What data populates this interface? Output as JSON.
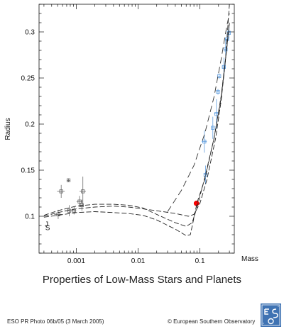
{
  "caption": "Properties of Low-Mass Stars and Planets",
  "footer": {
    "photo_id": "ESO PR Photo 06b/05 (3 March 2005)",
    "credit": "© European Southern Observatory"
  },
  "logo": {
    "icon": "eso-logo-icon",
    "color": "#3f73b3"
  },
  "chart_data": {
    "type": "scatter",
    "xlabel": "Mass",
    "ylabel": "Radius",
    "xscale": "log",
    "xlim": [
      0.00025,
      0.36
    ],
    "ylim": [
      0.06,
      0.33
    ],
    "x_ticks": [
      0.001,
      0.01,
      0.1
    ],
    "x_tick_labels": [
      "0.001",
      "0.01",
      "0.1"
    ],
    "y_ticks": [
      0.1,
      0.15,
      0.2,
      0.25,
      0.3
    ],
    "y_tick_labels": [
      "0.1",
      "0.15",
      "0.2",
      "0.25",
      "0.3"
    ],
    "grid": false,
    "annotations": [
      {
        "text": "J",
        "x": 0.00031,
        "y": 0.089
      },
      {
        "text": "S",
        "x": 0.000315,
        "y": 0.085
      }
    ],
    "series": [
      {
        "kind": "points",
        "color": "#555555",
        "points": [
          {
            "x": 0.00051,
            "y": 0.102,
            "xerr": 7e-05,
            "yerr": 0.005
          },
          {
            "x": 0.00057,
            "y": 0.127,
            "xerr": 8e-05,
            "yerr": 0.007
          },
          {
            "x": 0.00075,
            "y": 0.139,
            "xerr": 5e-05,
            "yerr": 0.002
          },
          {
            "x": 0.00077,
            "y": 0.106,
            "xerr": 0.00012,
            "yerr": 0.006
          },
          {
            "x": 0.00092,
            "y": 0.106,
            "xerr": 8e-05,
            "yerr": 0.004
          },
          {
            "x": 0.00113,
            "y": 0.116,
            "xerr": 0.00012,
            "yerr": 0.006
          },
          {
            "x": 0.00123,
            "y": 0.112,
            "xerr": 0.0001,
            "yerr": 0.006
          },
          {
            "x": 0.00128,
            "y": 0.127,
            "xerr": 0.00015,
            "yerr": 0.016
          }
        ]
      },
      {
        "kind": "points",
        "color": "#4a90d9",
        "points": [
          {
            "x": 0.123,
            "y": 0.145,
            "xerr": 0.005,
            "yerr": 0.01
          },
          {
            "x": 0.118,
            "y": 0.181,
            "xerr": 0.011,
            "yerr": 0.012
          },
          {
            "x": 0.162,
            "y": 0.196,
            "xerr": 0.008,
            "yerr": 0.012
          },
          {
            "x": 0.185,
            "y": 0.211,
            "xerr": 0.015,
            "yerr": 0.016
          },
          {
            "x": 0.196,
            "y": 0.235,
            "xerr": 0.006,
            "yerr": 0.003
          },
          {
            "x": 0.205,
            "y": 0.252,
            "xerr": 0.007,
            "yerr": 0.003
          },
          {
            "x": 0.244,
            "y": 0.262,
            "xerr": 0.018,
            "yerr": 0.01
          },
          {
            "x": 0.261,
            "y": 0.281,
            "xerr": 0.013,
            "yerr": 0.009
          },
          {
            "x": 0.275,
            "y": 0.292,
            "xerr": 0.02,
            "yerr": 0.006
          },
          {
            "x": 0.295,
            "y": 0.299,
            "xerr": 0.01,
            "yerr": 0.006
          }
        ]
      },
      {
        "kind": "points",
        "color": "#ff0000",
        "points": [
          {
            "x": 0.088,
            "y": 0.114
          }
        ]
      },
      {
        "kind": "line",
        "style": "dashed",
        "color": "#222222",
        "points": [
          [
            0.0003,
            0.1
          ],
          [
            0.0005,
            0.104
          ],
          [
            0.001,
            0.108
          ],
          [
            0.002,
            0.11
          ],
          [
            0.004,
            0.111
          ],
          [
            0.007,
            0.11
          ],
          [
            0.012,
            0.108
          ],
          [
            0.02,
            0.106
          ],
          [
            0.04,
            0.103
          ],
          [
            0.065,
            0.1
          ],
          [
            0.08,
            0.102
          ],
          [
            0.1,
            0.114
          ],
          [
            0.13,
            0.14
          ],
          [
            0.18,
            0.185
          ],
          [
            0.22,
            0.225
          ],
          [
            0.26,
            0.27
          ],
          [
            0.3,
            0.33
          ]
        ]
      },
      {
        "kind": "line",
        "style": "dashed",
        "color": "#222222",
        "points": [
          [
            0.0003,
            0.101
          ],
          [
            0.0005,
            0.106
          ],
          [
            0.001,
            0.111
          ],
          [
            0.002,
            0.113
          ],
          [
            0.004,
            0.113
          ],
          [
            0.007,
            0.112
          ],
          [
            0.012,
            0.109
          ],
          [
            0.02,
            0.102
          ],
          [
            0.04,
            0.093
          ],
          [
            0.06,
            0.089
          ],
          [
            0.075,
            0.093
          ],
          [
            0.09,
            0.11
          ],
          [
            0.12,
            0.142
          ],
          [
            0.17,
            0.185
          ],
          [
            0.22,
            0.228
          ],
          [
            0.27,
            0.28
          ],
          [
            0.3,
            0.31
          ]
        ]
      },
      {
        "kind": "line",
        "style": "dashed",
        "color": "#222222",
        "points": [
          [
            0.0003,
            0.099
          ],
          [
            0.0005,
            0.101
          ],
          [
            0.001,
            0.104
          ],
          [
            0.002,
            0.105
          ],
          [
            0.004,
            0.104
          ],
          [
            0.007,
            0.103
          ],
          [
            0.012,
            0.101
          ],
          [
            0.02,
            0.096
          ],
          [
            0.04,
            0.086
          ],
          [
            0.06,
            0.079
          ],
          [
            0.07,
            0.08
          ],
          [
            0.08,
            0.098
          ],
          [
            0.09,
            0.115
          ],
          [
            0.12,
            0.14
          ],
          [
            0.17,
            0.185
          ],
          [
            0.22,
            0.23
          ],
          [
            0.27,
            0.28
          ],
          [
            0.3,
            0.31
          ]
        ]
      },
      {
        "kind": "line",
        "style": "long-dash",
        "color": "#333333",
        "points": [
          [
            0.03,
            0.105
          ],
          [
            0.05,
            0.128
          ],
          [
            0.08,
            0.155
          ],
          [
            0.12,
            0.19
          ],
          [
            0.17,
            0.23
          ],
          [
            0.22,
            0.27
          ],
          [
            0.27,
            0.305
          ],
          [
            0.3,
            0.32
          ]
        ]
      }
    ]
  }
}
